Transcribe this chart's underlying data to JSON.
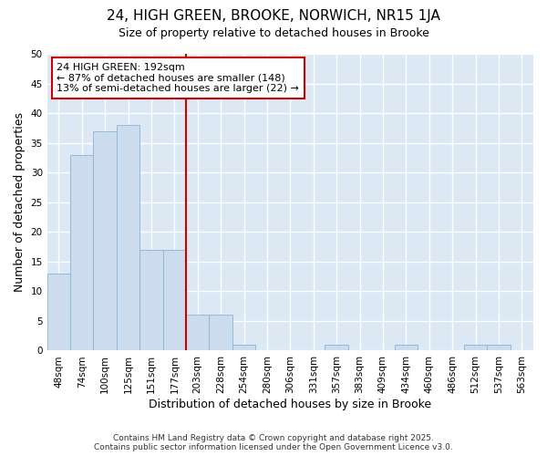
{
  "title": "24, HIGH GREEN, BROOKE, NORWICH, NR15 1JA",
  "subtitle": "Size of property relative to detached houses in Brooke",
  "xlabel": "Distribution of detached houses by size in Brooke",
  "ylabel": "Number of detached properties",
  "categories": [
    "48sqm",
    "74sqm",
    "100sqm",
    "125sqm",
    "151sqm",
    "177sqm",
    "203sqm",
    "228sqm",
    "254sqm",
    "280sqm",
    "306sqm",
    "331sqm",
    "357sqm",
    "383sqm",
    "409sqm",
    "434sqm",
    "460sqm",
    "486sqm",
    "512sqm",
    "537sqm",
    "563sqm"
  ],
  "values": [
    13,
    33,
    37,
    38,
    17,
    17,
    6,
    6,
    1,
    0,
    0,
    0,
    1,
    0,
    0,
    1,
    0,
    0,
    1,
    1,
    0
  ],
  "bar_color": "#ccdcee",
  "bar_edge_color": "#8ab4d4",
  "plot_bg_color": "#dce8f4",
  "fig_bg_color": "#ffffff",
  "grid_color": "#ffffff",
  "red_line_color": "#cc0000",
  "ylim": [
    0,
    50
  ],
  "yticks": [
    0,
    5,
    10,
    15,
    20,
    25,
    30,
    35,
    40,
    45,
    50
  ],
  "vline_x": 6.0,
  "annotation_text_line1": "24 HIGH GREEN: 192sqm",
  "annotation_text_line2": "← 87% of detached houses are smaller (148)",
  "annotation_text_line3": "13% of semi-detached houses are larger (22) →",
  "footer_line1": "Contains HM Land Registry data © Crown copyright and database right 2025.",
  "footer_line2": "Contains public sector information licensed under the Open Government Licence v3.0.",
  "title_fontsize": 11,
  "subtitle_fontsize": 9,
  "axis_label_fontsize": 9,
  "tick_fontsize": 7.5,
  "annotation_fontsize": 8,
  "footer_fontsize": 6.5
}
